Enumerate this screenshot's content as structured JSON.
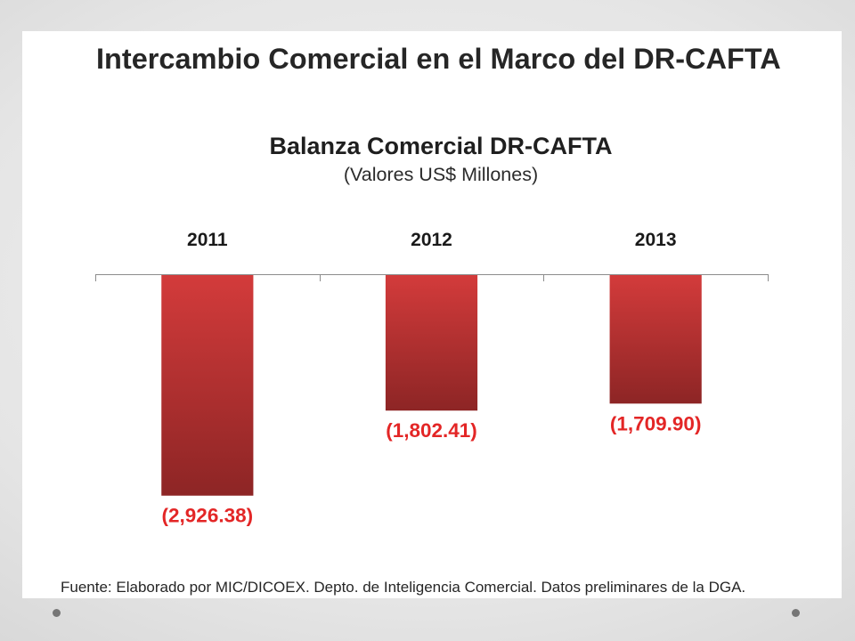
{
  "slide": {
    "title": "Intercambio Comercial en el Marco del DR-CAFTA",
    "source_note": "Fuente: Elaborado por MIC/DICOEX. Depto. de Inteligencia Comercial. Datos preliminares de la DGA."
  },
  "chart_data": {
    "type": "bar",
    "title": "Balanza Comercial DR-CAFTA",
    "subtitle": "(Valores US$ Millones)",
    "categories": [
      "2011",
      "2012",
      "2013"
    ],
    "values": [
      -2926.38,
      -1802.41,
      -1709.9
    ],
    "data_labels": [
      "(2,926.38)",
      "(1,802.41)",
      "(1,709.90)"
    ],
    "xlabel": "",
    "ylabel": "",
    "ylim": [
      -3000,
      0
    ],
    "grid": false,
    "bar_gradient": [
      "#d33b3b",
      "#8d2525"
    ],
    "label_color": "#e32626",
    "axis_color": "#8c8c8c"
  }
}
